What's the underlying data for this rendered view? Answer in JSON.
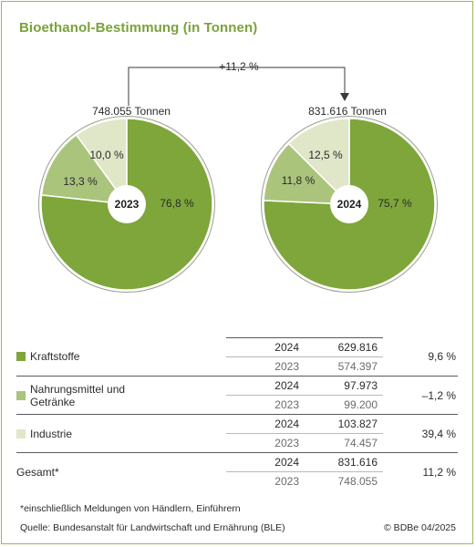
{
  "title": "Bioethanol-Bestimmung (in Tonnen)",
  "growth_label": "+11,2 %",
  "colors": {
    "Kraftstoffe": "#7ea63a",
    "Nahrungsmittel und Getränke": "#aac47c",
    "Industrie": "#dfe7c8",
    "title": "#7aa23a",
    "frame": "#9bb65a"
  },
  "chart_data": [
    {
      "type": "pie",
      "center_label": "2023",
      "total_label": "748.055 Tonnen",
      "slices": [
        {
          "category": "Kraftstoffe",
          "value": 76.8,
          "label": "76,8 %"
        },
        {
          "category": "Nahrungsmittel und Getränke",
          "value": 13.3,
          "label": "13,3 %"
        },
        {
          "category": "Industrie",
          "value": 10.0,
          "label": "10,0 %"
        }
      ]
    },
    {
      "type": "pie",
      "center_label": "2024",
      "total_label": "831.616 Tonnen",
      "slices": [
        {
          "category": "Kraftstoffe",
          "value": 75.7,
          "label": "75,7 %"
        },
        {
          "category": "Nahrungsmittel und Getränke",
          "value": 11.8,
          "label": "11,8 %"
        },
        {
          "category": "Industrie",
          "value": 12.5,
          "label": "12,5 %"
        }
      ]
    }
  ],
  "table": {
    "rows": [
      {
        "category": "Kraftstoffe",
        "year1": "2024",
        "value1": "629.816",
        "year2": "2023",
        "value2": "574.397",
        "change": "9,6 %"
      },
      {
        "category": "Nahrungsmittel und Getränke",
        "year1": "2024",
        "value1": "97.973",
        "year2": "2023",
        "value2": "99.200",
        "change": "–1,2 %"
      },
      {
        "category": "Industrie",
        "year1": "2024",
        "value1": "103.827",
        "year2": "2023",
        "value2": "74.457",
        "change": "39,4 %"
      },
      {
        "category": "Gesamt*",
        "year1": "2024",
        "value1": "831.616",
        "year2": "2023",
        "value2": "748.055",
        "change": "11,2 %"
      }
    ]
  },
  "footnote": "*einschließlich Meldungen von Händlern, Einführern",
  "source": "Quelle: Bundesanstalt für Landwirtschaft und Ernährung (BLE)",
  "credit": "© BDBe 04/2025"
}
